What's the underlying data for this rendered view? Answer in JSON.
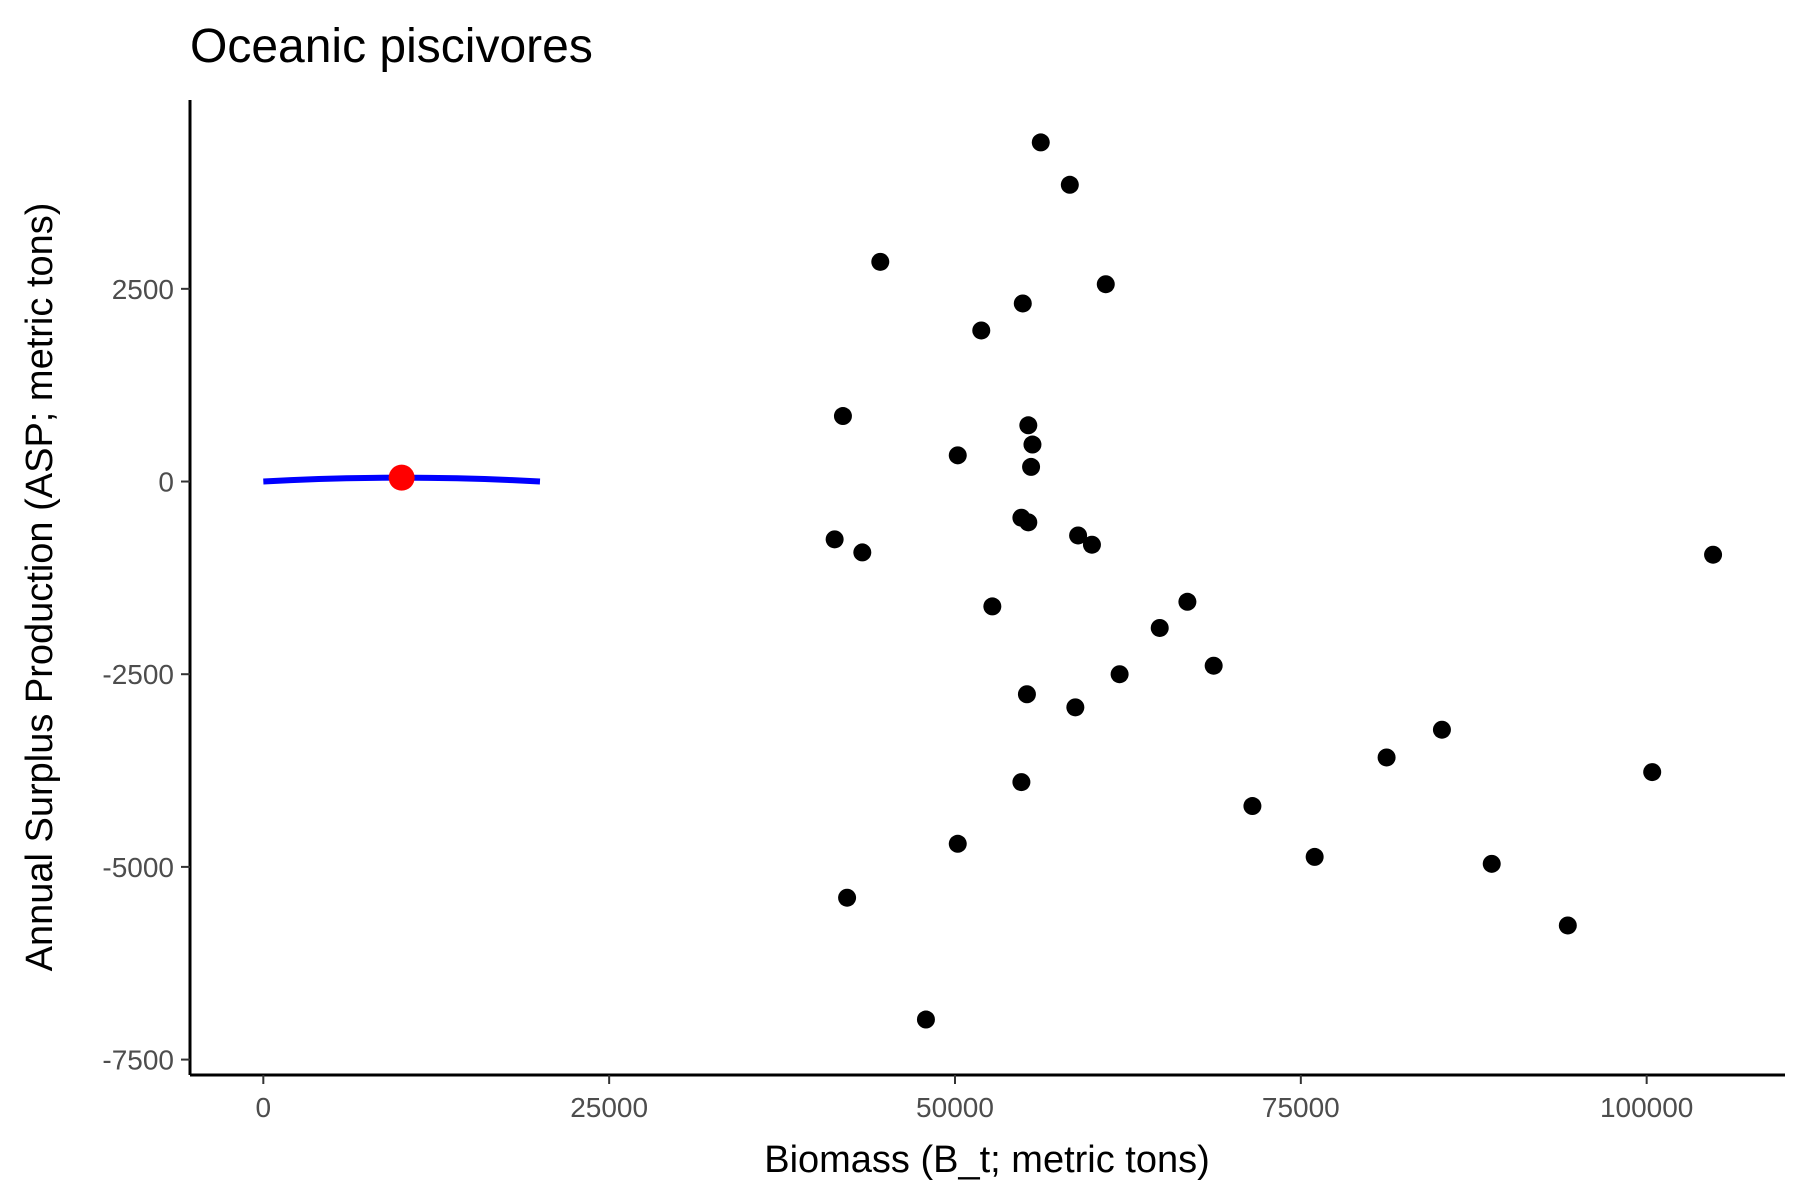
{
  "chart_data": {
    "type": "scatter",
    "title": "Oceanic piscivores",
    "xlabel": "Biomass (B_t; metric tons)",
    "ylabel": "Annual Surplus Production (ASP; metric tons)",
    "xlim": [
      -5300,
      110000
    ],
    "ylim": [
      -7700,
      4950
    ],
    "x_ticks": [
      0,
      25000,
      50000,
      75000,
      100000
    ],
    "x_tick_labels": [
      "0",
      "25000",
      "50000",
      "75000",
      "100000"
    ],
    "y_ticks": [
      2500,
      0,
      -2500,
      -5000,
      -7500
    ],
    "y_tick_labels": [
      "2500",
      "0",
      "-2500",
      "-5000",
      "-7500"
    ],
    "grid": false,
    "series": [
      {
        "type": "scatter",
        "color": "#000000",
        "points": [
          {
            "x": 56200,
            "y": 4400
          },
          {
            "x": 58300,
            "y": 3850
          },
          {
            "x": 44600,
            "y": 2850
          },
          {
            "x": 60900,
            "y": 2560
          },
          {
            "x": 54900,
            "y": 2310
          },
          {
            "x": 51900,
            "y": 1960
          },
          {
            "x": 41900,
            "y": 850
          },
          {
            "x": 55300,
            "y": 730
          },
          {
            "x": 55600,
            "y": 480
          },
          {
            "x": 50200,
            "y": 340
          },
          {
            "x": 55500,
            "y": 190
          },
          {
            "x": 54800,
            "y": -470
          },
          {
            "x": 55300,
            "y": -530
          },
          {
            "x": 58900,
            "y": -700
          },
          {
            "x": 59900,
            "y": -820
          },
          {
            "x": 41300,
            "y": -750
          },
          {
            "x": 43300,
            "y": -920
          },
          {
            "x": 104800,
            "y": -950
          },
          {
            "x": 52700,
            "y": -1620
          },
          {
            "x": 66800,
            "y": -1560
          },
          {
            "x": 64800,
            "y": -1900
          },
          {
            "x": 68700,
            "y": -2390
          },
          {
            "x": 61900,
            "y": -2500
          },
          {
            "x": 55200,
            "y": -2760
          },
          {
            "x": 58700,
            "y": -2930
          },
          {
            "x": 85200,
            "y": -3220
          },
          {
            "x": 81200,
            "y": -3580
          },
          {
            "x": 100400,
            "y": -3770
          },
          {
            "x": 54800,
            "y": -3900
          },
          {
            "x": 71500,
            "y": -4210
          },
          {
            "x": 50200,
            "y": -4700
          },
          {
            "x": 76000,
            "y": -4870
          },
          {
            "x": 88800,
            "y": -4960
          },
          {
            "x": 42200,
            "y": -5400
          },
          {
            "x": 94300,
            "y": -5760
          },
          {
            "x": 47900,
            "y": -6980
          }
        ]
      },
      {
        "type": "line",
        "color": "#0000ff",
        "x": [
          0,
          2000,
          4000,
          6000,
          8000,
          10000,
          12000,
          14000,
          16000,
          18000,
          20000
        ],
        "y": [
          0,
          18,
          32,
          42,
          48,
          50,
          48,
          42,
          32,
          18,
          0
        ]
      },
      {
        "type": "marker",
        "color": "#ff0000",
        "x": 10000,
        "y": 50
      }
    ]
  }
}
